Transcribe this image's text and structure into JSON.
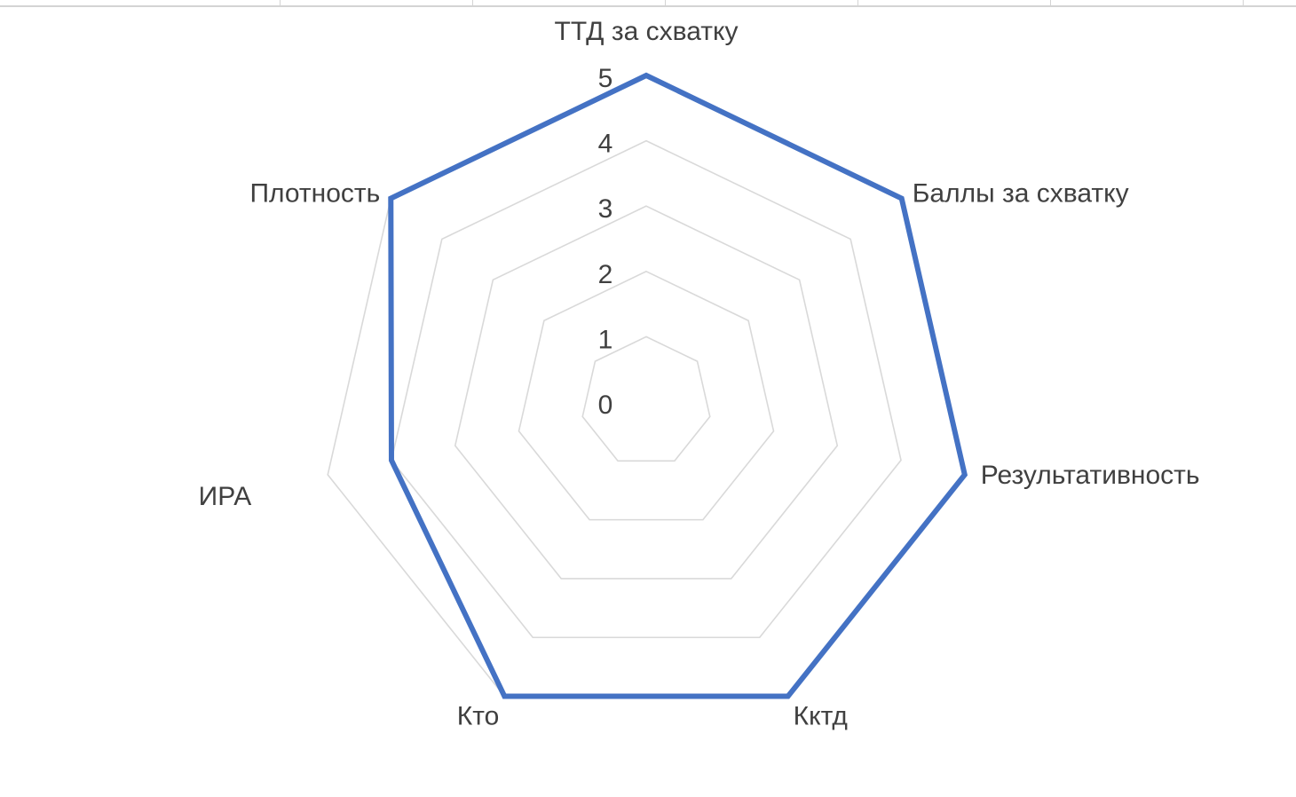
{
  "chart_data": {
    "type": "radar",
    "title": "",
    "categories": [
      "ТТД за схватку",
      "Баллы за схватку",
      "Результативность",
      "Кктд",
      "Кто",
      "ИРА",
      "Плотность"
    ],
    "series": [
      {
        "values": [
          5,
          5,
          5,
          5,
          5,
          4,
          5
        ],
        "color": "#4472c4"
      }
    ],
    "ticks": [
      "0",
      "1",
      "2",
      "3",
      "4",
      "5"
    ],
    "rlim": [
      0,
      5
    ],
    "grid": true,
    "legend": "none",
    "colors": {
      "series": "#4472c4",
      "grid": "#d9d9d9",
      "text": "#404040"
    }
  }
}
